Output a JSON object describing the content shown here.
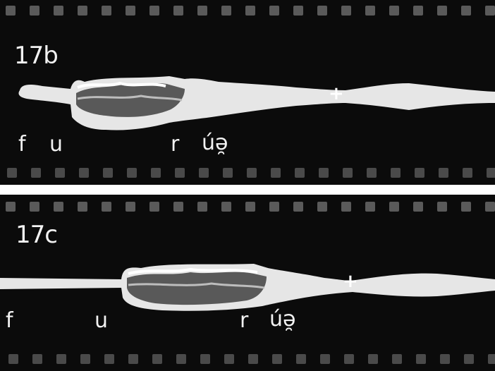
{
  "panels": [
    {
      "id": "17b",
      "phonemes": [
        {
          "text": "f"
        },
        {
          "text": "u"
        },
        {
          "text": "r"
        },
        {
          "text": "úə̯"
        }
      ],
      "marker": "+"
    },
    {
      "id": "17c",
      "phonemes": [
        {
          "text": "f"
        },
        {
          "text": "u"
        },
        {
          "text": "r"
        },
        {
          "text": "úə̯"
        }
      ],
      "marker": "+"
    }
  ],
  "colors": {
    "film_background": "#0b0b0b",
    "sprocket": "#5a5a5a",
    "waveform": "#e6e6e6",
    "text": "#f2f2f2",
    "separator": "#ffffff"
  }
}
